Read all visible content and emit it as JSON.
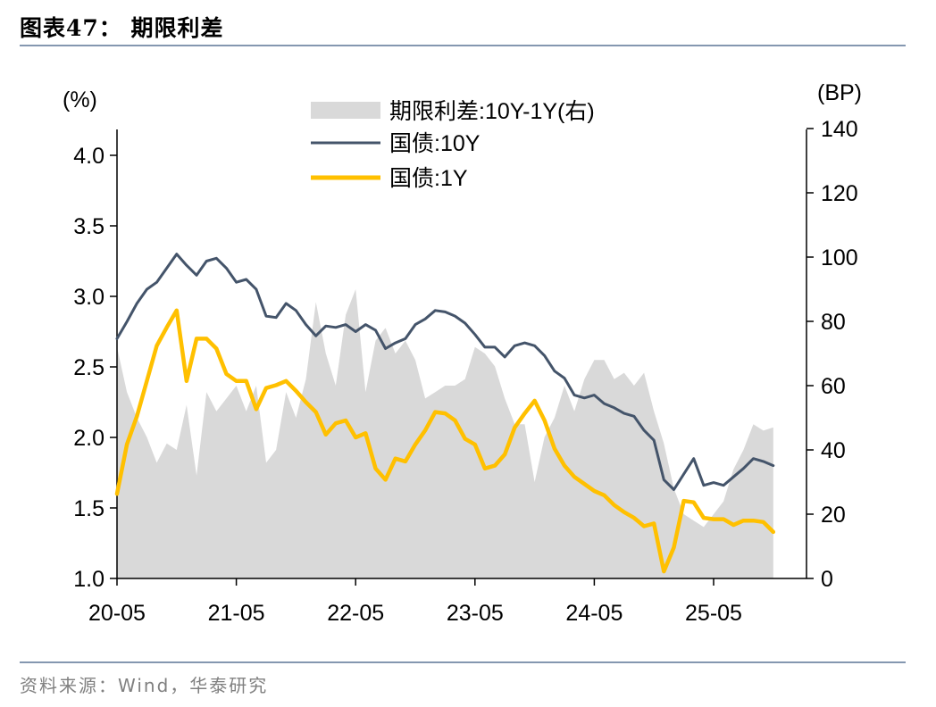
{
  "header": {
    "title": "图表47：  期限利差"
  },
  "footer": {
    "source": "资料来源：Wind，华泰研究"
  },
  "colors": {
    "spread": "#d9d9d9",
    "yield10y": "#44546a",
    "yield1y": "#ffc000",
    "rule": "#8497b0"
  },
  "chart_data": {
    "type": "line",
    "left_axis_unit": "(%)",
    "right_axis_unit": "(BP)",
    "x_ticks": [
      "20-05",
      "21-05",
      "22-05",
      "23-05",
      "24-05",
      "25-05"
    ],
    "y_left": {
      "min": 1.0,
      "max": 4.3,
      "ticks": [
        "1.0",
        "1.5",
        "2.0",
        "2.5",
        "3.0",
        "3.5",
        "4.0"
      ]
    },
    "y_right": {
      "min": 0,
      "max": 140,
      "ticks": [
        "0",
        "20",
        "40",
        "60",
        "80",
        "100",
        "120",
        "140"
      ]
    },
    "x_range": [
      "2020-05",
      "2025-11"
    ],
    "legend": [
      {
        "key": "spread",
        "label": "期限利差:10Y-1Y(右)"
      },
      {
        "key": "yield10y",
        "label": "国债:10Y"
      },
      {
        "key": "yield1y",
        "label": "国债:1Y"
      }
    ],
    "series": [
      {
        "name": "国债:10Y",
        "axis": "left",
        "x": [
          "2020-05",
          "2020-06",
          "2020-07",
          "2020-08",
          "2020-09",
          "2020-10",
          "2020-11",
          "2020-12",
          "2021-01",
          "2021-02",
          "2021-03",
          "2021-04",
          "2021-05",
          "2021-06",
          "2021-07",
          "2021-08",
          "2021-09",
          "2021-10",
          "2021-11",
          "2021-12",
          "2022-01",
          "2022-02",
          "2022-03",
          "2022-04",
          "2022-05",
          "2022-06",
          "2022-07",
          "2022-08",
          "2022-09",
          "2022-10",
          "2022-11",
          "2022-12",
          "2023-01",
          "2023-02",
          "2023-03",
          "2023-04",
          "2023-05",
          "2023-06",
          "2023-07",
          "2023-08",
          "2023-09",
          "2023-10",
          "2023-11",
          "2023-12",
          "2024-01",
          "2024-02",
          "2024-03",
          "2024-04",
          "2024-05",
          "2024-06",
          "2024-07",
          "2024-08",
          "2024-09",
          "2024-10",
          "2024-11",
          "2024-12",
          "2025-01",
          "2025-02",
          "2025-03",
          "2025-04",
          "2025-05",
          "2025-06",
          "2025-07",
          "2025-08",
          "2025-09",
          "2025-10",
          "2025-11"
        ],
        "values": [
          2.7,
          2.82,
          2.95,
          3.05,
          3.1,
          3.2,
          3.3,
          3.22,
          3.15,
          3.25,
          3.27,
          3.2,
          3.1,
          3.12,
          3.05,
          2.86,
          2.85,
          2.95,
          2.9,
          2.8,
          2.72,
          2.79,
          2.78,
          2.8,
          2.75,
          2.8,
          2.76,
          2.63,
          2.67,
          2.7,
          2.8,
          2.84,
          2.9,
          2.89,
          2.86,
          2.81,
          2.73,
          2.64,
          2.64,
          2.57,
          2.65,
          2.67,
          2.65,
          2.58,
          2.47,
          2.42,
          2.3,
          2.28,
          2.3,
          2.24,
          2.21,
          2.17,
          2.15,
          2.05,
          1.98,
          1.7,
          1.63,
          1.74,
          1.85,
          1.66,
          1.68,
          1.66,
          1.72,
          1.78,
          1.85,
          1.83,
          1.8
        ]
      },
      {
        "name": "国债:1Y",
        "axis": "left",
        "x": [
          "2020-05",
          "2020-06",
          "2020-07",
          "2020-08",
          "2020-09",
          "2020-10",
          "2020-11",
          "2020-12",
          "2021-01",
          "2021-02",
          "2021-03",
          "2021-04",
          "2021-05",
          "2021-06",
          "2021-07",
          "2021-08",
          "2021-09",
          "2021-10",
          "2021-11",
          "2021-12",
          "2022-01",
          "2022-02",
          "2022-03",
          "2022-04",
          "2022-05",
          "2022-06",
          "2022-07",
          "2022-08",
          "2022-09",
          "2022-10",
          "2022-11",
          "2022-12",
          "2023-01",
          "2023-02",
          "2023-03",
          "2023-04",
          "2023-05",
          "2023-06",
          "2023-07",
          "2023-08",
          "2023-09",
          "2023-10",
          "2023-11",
          "2023-12",
          "2024-01",
          "2024-02",
          "2024-03",
          "2024-04",
          "2024-05",
          "2024-06",
          "2024-07",
          "2024-08",
          "2024-09",
          "2024-10",
          "2024-11",
          "2024-12",
          "2025-01",
          "2025-02",
          "2025-03",
          "2025-04",
          "2025-05",
          "2025-06",
          "2025-07",
          "2025-08",
          "2025-09",
          "2025-10",
          "2025-11"
        ],
        "values": [
          1.6,
          1.95,
          2.15,
          2.4,
          2.65,
          2.78,
          2.9,
          2.4,
          2.7,
          2.7,
          2.63,
          2.45,
          2.4,
          2.4,
          2.2,
          2.35,
          2.37,
          2.4,
          2.33,
          2.25,
          2.18,
          2.02,
          2.1,
          2.12,
          2.0,
          2.03,
          1.78,
          1.7,
          1.85,
          1.83,
          1.95,
          2.05,
          2.18,
          2.17,
          2.12,
          1.99,
          1.95,
          1.78,
          1.8,
          1.88,
          2.07,
          2.17,
          2.26,
          2.12,
          1.92,
          1.8,
          1.72,
          1.67,
          1.62,
          1.59,
          1.52,
          1.47,
          1.43,
          1.37,
          1.39,
          1.05,
          1.22,
          1.55,
          1.54,
          1.43,
          1.42,
          1.42,
          1.38,
          1.41,
          1.41,
          1.4,
          1.33
        ]
      },
      {
        "name": "期限利差:10Y-1Y(右)",
        "axis": "right",
        "x": [
          "2020-05",
          "2020-06",
          "2020-07",
          "2020-08",
          "2020-09",
          "2020-10",
          "2020-11",
          "2020-12",
          "2021-01",
          "2021-02",
          "2021-03",
          "2021-04",
          "2021-05",
          "2021-06",
          "2021-07",
          "2021-08",
          "2021-09",
          "2021-10",
          "2021-11",
          "2021-12",
          "2022-01",
          "2022-02",
          "2022-03",
          "2022-04",
          "2022-05",
          "2022-06",
          "2022-07",
          "2022-08",
          "2022-09",
          "2022-10",
          "2022-11",
          "2022-12",
          "2023-01",
          "2023-02",
          "2023-03",
          "2023-04",
          "2023-05",
          "2023-06",
          "2023-07",
          "2023-08",
          "2023-09",
          "2023-10",
          "2023-11",
          "2023-12",
          "2024-01",
          "2024-02",
          "2024-03",
          "2024-04",
          "2024-05",
          "2024-06",
          "2024-07",
          "2024-08",
          "2024-09",
          "2024-10",
          "2024-11",
          "2024-12",
          "2025-01",
          "2025-02",
          "2025-03",
          "2025-04",
          "2025-05",
          "2025-06",
          "2025-07",
          "2025-08",
          "2025-09",
          "2025-10",
          "2025-11"
        ],
        "values": [
          72,
          58,
          50,
          44,
          36,
          42,
          40,
          54,
          32,
          58,
          52,
          56,
          60,
          52,
          60,
          36,
          40,
          58,
          50,
          62,
          86,
          70,
          60,
          82,
          90,
          58,
          74,
          78,
          70,
          74,
          68,
          56,
          58,
          60,
          60,
          62,
          72,
          70,
          66,
          56,
          48,
          48,
          30,
          44,
          50,
          60,
          52,
          62,
          68,
          68,
          62,
          64,
          60,
          64,
          52,
          42,
          28,
          20,
          18,
          16,
          20,
          24,
          34,
          40,
          48,
          46,
          47
        ]
      }
    ]
  }
}
